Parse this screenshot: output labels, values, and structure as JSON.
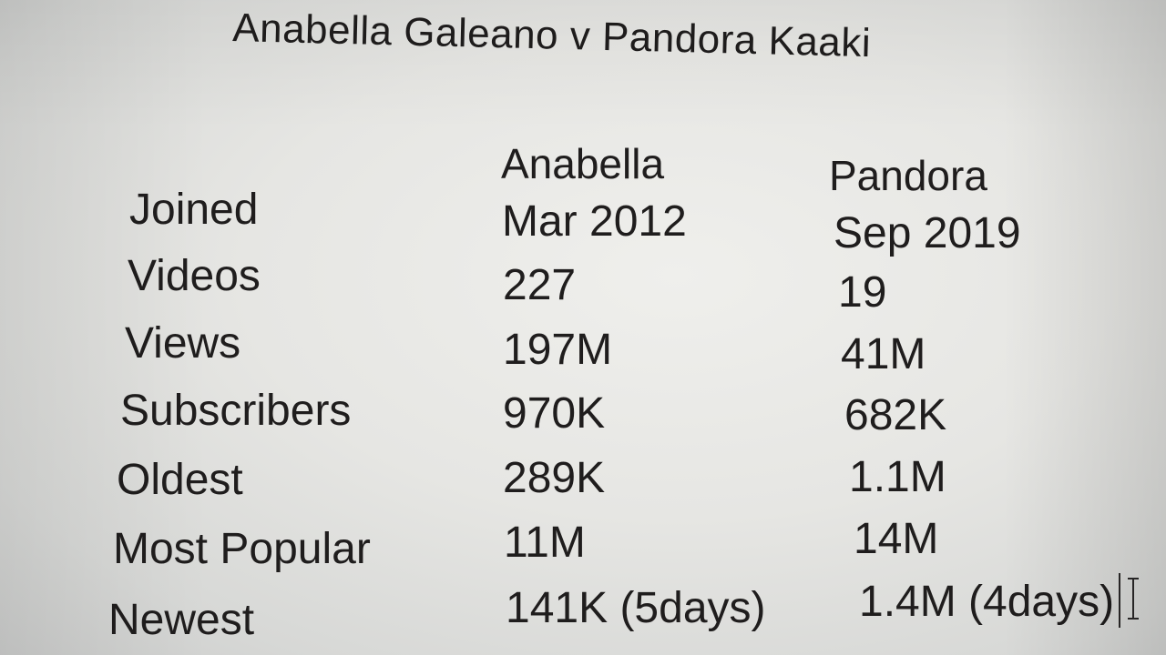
{
  "title": "Anabella Galeano v Pandora Kaaki",
  "columns": {
    "anabella": "Anabella",
    "pandora": "Pandora"
  },
  "rows": [
    {
      "label": "Joined",
      "anabella": "Mar 2012",
      "pandora": "Sep 2019"
    },
    {
      "label": "Videos",
      "anabella": "227",
      "pandora": "19"
    },
    {
      "label": "Views",
      "anabella": "197M",
      "pandora": "41M"
    },
    {
      "label": "Subscribers",
      "anabella": "970K",
      "pandora": "682K"
    },
    {
      "label": "Oldest",
      "anabella": "289K",
      "pandora": "1.1M"
    },
    {
      "label": "Most Popular",
      "anabella": "11M",
      "pandora": "14M"
    },
    {
      "label": "Newest",
      "anabella": "141K (5days)",
      "pandora": "1.4M (4days)"
    }
  ],
  "colors": {
    "text": "#1f1d1d",
    "background": "#e6e6e3"
  },
  "icons": {
    "text_cursor": "text-caret-icon",
    "mouse_pointer": "i-beam-cursor-icon"
  }
}
